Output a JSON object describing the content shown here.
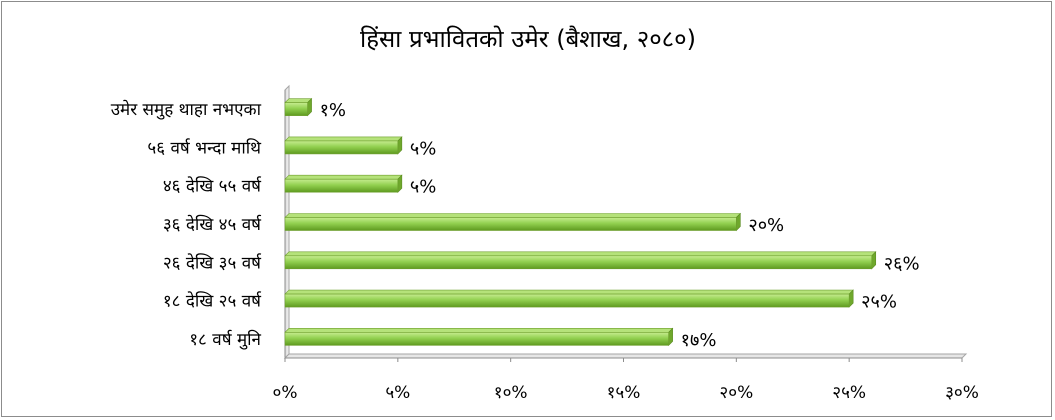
{
  "chart_data": {
    "type": "bar",
    "orientation": "horizontal",
    "title": "हिंसा प्रभावितको उमेर (बैशाख, २०८०)",
    "categories": [
      "उमेर समुह थाहा नभएका",
      "५६ वर्ष भन्दा माथि",
      "४६ देखि ५५ वर्ष",
      "३६ देखि ४५ वर्ष",
      "२६ देखि ३५ वर्ष",
      "१८ देखि २५ वर्ष",
      "१८ वर्ष मुनि"
    ],
    "values": [
      1,
      5,
      5,
      20,
      26,
      25,
      17
    ],
    "data_labels": [
      "१%",
      "५%",
      "५%",
      "२०%",
      "२६%",
      "२५%",
      "१७%"
    ],
    "xlim": [
      0,
      30
    ],
    "x_ticks": [
      0,
      5,
      10,
      15,
      20,
      25,
      30
    ],
    "x_tick_labels": [
      "०%",
      "५%",
      "१०%",
      "१५%",
      "२०%",
      "२५%",
      "३०%"
    ],
    "bar_color": "#92d050",
    "grid": false,
    "legend": "none"
  }
}
